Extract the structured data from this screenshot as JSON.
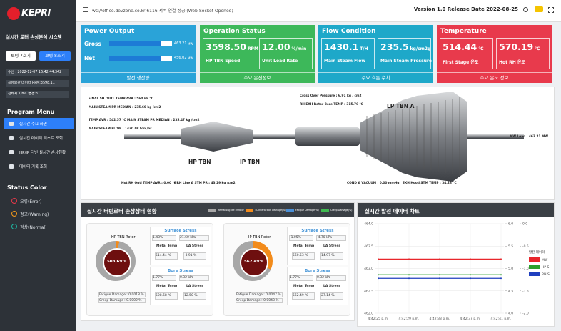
{
  "header": {
    "url": "ws://office.devzone.co.kr:6116 서버 연결 성공 (Web-Socket Opened)",
    "version": "Version 1.0 Release Date 2022-08-25"
  },
  "sidebar": {
    "logo": "KEPRI",
    "title": "실시간 로터 손상분석 시스템",
    "buttons": [
      "보령 7호기",
      "보령 8호기"
    ],
    "info": [
      "수신 : 2022-12-07 16:42:44.342",
      "공유보관 데이터 RPM:3598.11",
      "전체시 1/8호 변경:3"
    ],
    "menu_title": "Program Menu",
    "menu": [
      "실시간 주요 화면",
      "실시간 데이터 리스트 조회",
      "HP/IP 터빈 실시간 손상현황",
      "데이터 기록 조회"
    ],
    "status_title": "Status Color",
    "status": [
      "오류(Error)",
      "경고(Warning)",
      "정상(Normal)"
    ]
  },
  "cards": [
    {
      "title": "Power Output",
      "items": [
        {
          "label": "Gross",
          "value": "463.21",
          "unit": "MW"
        },
        {
          "label": "Net",
          "value": "456.02",
          "unit": "MW"
        }
      ],
      "footer": "발전 생산량"
    },
    {
      "title": "Operation Status",
      "items": [
        {
          "value": "3598.50",
          "unit": "RPM",
          "label": "HP TBN Speed"
        },
        {
          "value": "12.00",
          "unit": "%/min",
          "label": "Unit Load Rate"
        }
      ],
      "footer": "주요 운전정보"
    },
    {
      "title": "Flow Condition",
      "items": [
        {
          "value": "1430.1",
          "unit": "T/H",
          "label": "Main Steam Flow"
        },
        {
          "value": "235.5",
          "unit": "kg/cm2g",
          "label": "Main Steam Pressure"
        }
      ],
      "footer": "주요 흐름 수치"
    },
    {
      "title": "Temperature",
      "items": [
        {
          "value": "514.44",
          "unit": "℃",
          "label": "First Stage 온도"
        },
        {
          "value": "570.19",
          "unit": "℃",
          "label": "Hot RH 온도"
        }
      ],
      "footer": "주요 온도 정보"
    }
  ],
  "turbine": {
    "annotations": [
      "FINAL SH OUTL TEMP AVR : 560.68 °C",
      "MAIN STEAM PR MEDIAN : 235.60 kg /cm2",
      "TEMP AVR : 542.57 °C  MAIN STEAM PR MEDIAN : 235.47 kg /cm2",
      "MAIN STEAM FLOW : 1430.08 ton /hr",
      "Cross Over Pressure : 6.91 kg / cm2",
      "RH EXH Rotor Bore TEMP : 315.76 °C",
      "MW Load : 463.21 MW",
      "Hot RH Outl TEMP AVR : 0.00 °C",
      "HRH Line A STM PR : 43.29 kg /cm2",
      "COND A VACUUM : 0.00 mmHg",
      "EXH Hood STM TEMP : 34.28 °C"
    ],
    "labels": [
      "LP TBN A",
      "HP TBN",
      "IP TBN"
    ]
  },
  "damage": {
    "title": "실시간 터빈로터 손상상태 현황",
    "legend": [
      "Remaining life of rotor",
      "TC Interaction Damage(%)",
      "Fatigue Damage(%)",
      "Creep Damage(%)"
    ],
    "rotors": [
      {
        "name": "HP TBN Rotor",
        "temp": "508.69°C",
        "surface": {
          "title": "Surface Stress",
          "pct": "1.48%",
          "kpa": "21.60 kPa",
          "metal_label": "Metal Temp",
          "metal": "514.44 ℃",
          "la_label": "LA Stress",
          "la": "-3.91 %"
        },
        "bore": {
          "title": "Bore Stress",
          "pct": "1.77%",
          "kpa": "0.32 kPa",
          "metal_label": "Metal Temp",
          "metal": "508.68 ℃",
          "la_label": "LA Stress",
          "la": "12.50 %"
        },
        "fatigue": "Fatigue Damage : 0.0018 %",
        "creep": "Creep Damage : 0.0002 %"
      },
      {
        "name": "IP TBN Rotor",
        "temp": "562.49°C",
        "surface": {
          "title": "Surface Stress",
          "pct": "-1.05%",
          "kpa": "-4.70 kPa",
          "metal_label": "Metal Temp",
          "metal": "560.53 ℃",
          "la_label": "LA Stress",
          "la": "14.97 %"
        },
        "bore": {
          "title": "Bore Stress",
          "pct": "1.77%",
          "kpa": "0.32 kPa",
          "metal_label": "Metal Temp",
          "metal": "562.49 ℃",
          "la_label": "LA Stress",
          "la": "27.14 %"
        },
        "fatigue": "Fatigue Damage : 0.0047 %",
        "creep": "Creep Damage : 0.0048 %"
      }
    ]
  },
  "chart": {
    "type": "line",
    "title": "실시간 발전 데이터 차트",
    "legend_title": "발전 데이터",
    "categories": [
      "4:42:25 p.m.",
      "4:42:29 p.m.",
      "4:42:33 p.m.",
      "4:42:37 p.m.",
      "4:42:41 p.m."
    ],
    "series": [
      {
        "name": "MW",
        "color": "#e8262b",
        "values": [
          463.21,
          463.21,
          463.21,
          463.21,
          463.21
        ]
      },
      {
        "name": "HP S",
        "color": "#2ca02c",
        "values": [
          4.86,
          4.86,
          4.86,
          4.86,
          4.86
        ],
        "axis": "y2"
      },
      {
        "name": "RH S",
        "color": "#1f3fbf",
        "values": [
          -1.22,
          -1.22,
          -1.22,
          -1.22,
          -1.22
        ],
        "axis": "y3"
      }
    ],
    "ylim": [
      462,
      464
    ],
    "yticks": [
      {
        "value": 464,
        "label": "464.0"
      },
      {
        "value": 463.5,
        "label": "463.5"
      },
      {
        "value": 463,
        "label": "463.0"
      },
      {
        "value": 462.5,
        "label": "462.5"
      },
      {
        "value": 462,
        "label": "462.0"
      }
    ],
    "y2lim": [
      4,
      6
    ],
    "y2ticks": [
      {
        "value": 6,
        "label": "6.0"
      },
      {
        "value": 5.5,
        "label": "5.5"
      },
      {
        "value": 5,
        "label": "5.0"
      },
      {
        "value": 4.5,
        "label": "4.5"
      },
      {
        "value": 4,
        "label": "4.0"
      }
    ],
    "y3lim": [
      -2,
      0
    ],
    "y3ticks": [
      {
        "value": 0,
        "label": "0.0"
      },
      {
        "value": -0.5,
        "label": "-0.5"
      },
      {
        "value": -1,
        "label": "-1.0"
      },
      {
        "value": -1.5,
        "label": "-1.5"
      },
      {
        "value": -2,
        "label": "-2.0"
      }
    ],
    "grid": true
  }
}
